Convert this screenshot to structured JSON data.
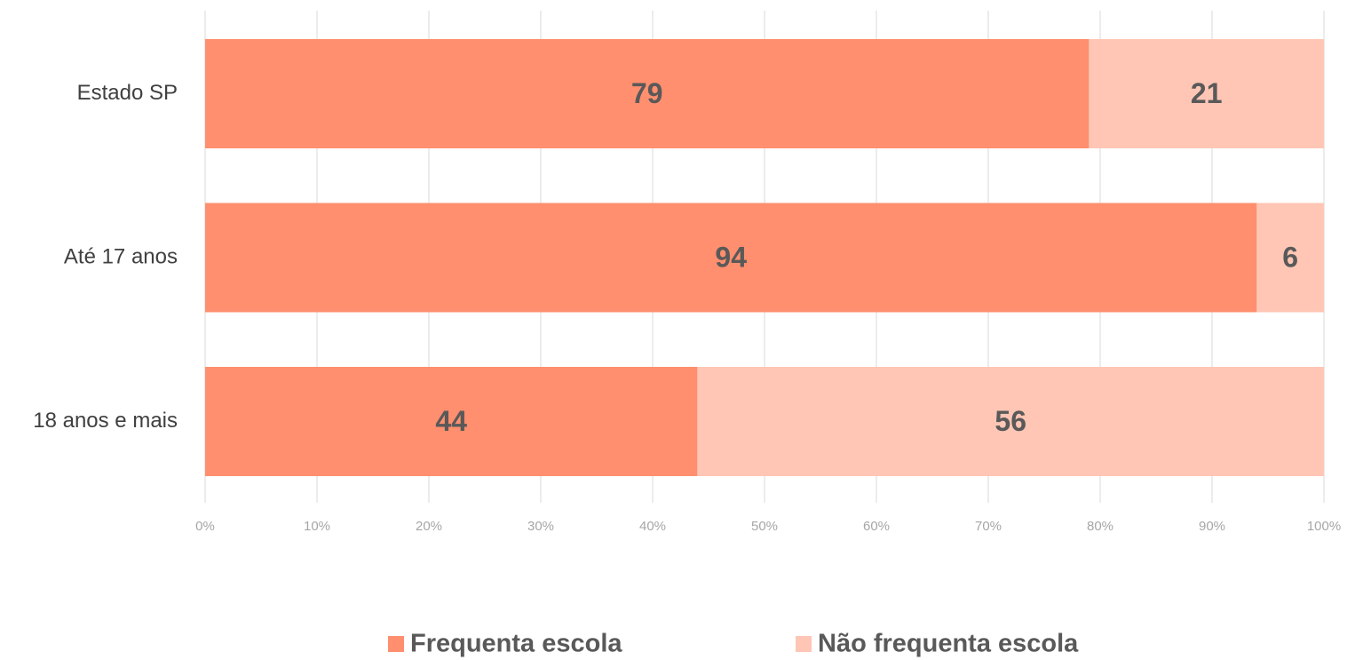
{
  "chart_data": {
    "type": "stacked-barh",
    "categories": [
      "Estado SP",
      "Até 17 anos",
      "18 anos e mais"
    ],
    "series": [
      {
        "name": "Frequenta escola",
        "color": "#ff8f6e",
        "values": [
          79,
          94,
          44
        ]
      },
      {
        "name": "Não frequenta escola",
        "color": "#ffc6b5",
        "values": [
          21,
          6,
          56
        ]
      }
    ],
    "xlim": [
      0,
      100
    ],
    "xticks": [
      {
        "value": 0,
        "label": "0%"
      },
      {
        "value": 10,
        "label": "10%"
      },
      {
        "value": 20,
        "label": "20%"
      },
      {
        "value": 30,
        "label": "30%"
      },
      {
        "value": 40,
        "label": "40%"
      },
      {
        "value": 50,
        "label": "50%"
      },
      {
        "value": 60,
        "label": "60%"
      },
      {
        "value": 70,
        "label": "70%"
      },
      {
        "value": 80,
        "label": "80%"
      },
      {
        "value": 90,
        "label": "90%"
      },
      {
        "value": 100,
        "label": "100%"
      }
    ],
    "grid": true,
    "legend": "bottom"
  }
}
